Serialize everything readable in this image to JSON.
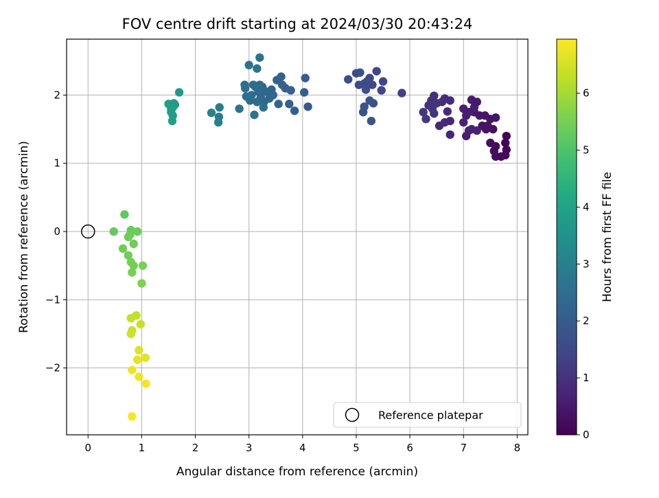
{
  "chart_data": {
    "type": "scatter",
    "title": "FOV centre drift starting at 2024/03/30 20:43:24",
    "xlabel": "Angular distance from reference (arcmin)",
    "ylabel": "Rotation from reference (arcmin)",
    "xlim": [
      -0.4,
      8.2
    ],
    "ylim": [
      -2.98,
      2.82
    ],
    "x_ticks": [
      0,
      1,
      2,
      3,
      4,
      5,
      6,
      7,
      8
    ],
    "y_ticks": [
      -2,
      -1,
      0,
      1,
      2
    ],
    "grid": true,
    "colormap": "viridis",
    "colorbar": {
      "label": "Hours from first FF file",
      "range": [
        0,
        6.95
      ],
      "ticks": [
        0,
        1,
        2,
        3,
        4,
        5,
        6
      ]
    },
    "legend": {
      "placement": "lower-right",
      "entries": [
        {
          "label": "Reference platepar",
          "marker": "open-circle"
        }
      ]
    },
    "reference_point": {
      "x": 0,
      "y": 0
    },
    "series": [
      {
        "marker": "filled-circle",
        "points": [
          {
            "x": 7.8,
            "y": 1.4,
            "t": 0.05
          },
          {
            "x": 7.78,
            "y": 1.3,
            "t": 0.08
          },
          {
            "x": 7.8,
            "y": 1.2,
            "t": 0.1
          },
          {
            "x": 7.78,
            "y": 1.12,
            "t": 0.12
          },
          {
            "x": 7.7,
            "y": 1.1,
            "t": 0.15
          },
          {
            "x": 7.6,
            "y": 1.1,
            "t": 0.18
          },
          {
            "x": 7.57,
            "y": 1.18,
            "t": 0.2
          },
          {
            "x": 7.6,
            "y": 1.25,
            "t": 0.22
          },
          {
            "x": 7.5,
            "y": 1.3,
            "t": 0.25
          },
          {
            "x": 7.55,
            "y": 1.5,
            "t": 0.27
          },
          {
            "x": 7.42,
            "y": 1.5,
            "t": 0.3
          },
          {
            "x": 7.35,
            "y": 1.55,
            "t": 0.33
          },
          {
            "x": 7.45,
            "y": 1.55,
            "t": 0.35
          },
          {
            "x": 7.5,
            "y": 1.65,
            "t": 0.37
          },
          {
            "x": 7.6,
            "y": 1.67,
            "t": 0.4
          },
          {
            "x": 7.4,
            "y": 1.7,
            "t": 0.42
          },
          {
            "x": 7.3,
            "y": 1.7,
            "t": 0.44
          },
          {
            "x": 7.2,
            "y": 1.75,
            "t": 0.46
          },
          {
            "x": 7.25,
            "y": 1.9,
            "t": 0.48
          },
          {
            "x": 7.15,
            "y": 1.93,
            "t": 0.5
          },
          {
            "x": 7.2,
            "y": 1.82,
            "t": 0.52
          },
          {
            "x": 7.1,
            "y": 1.75,
            "t": 0.54
          },
          {
            "x": 7.05,
            "y": 1.7,
            "t": 0.56
          },
          {
            "x": 7.0,
            "y": 1.8,
            "t": 0.58
          },
          {
            "x": 7.15,
            "y": 1.5,
            "t": 0.6
          },
          {
            "x": 7.05,
            "y": 1.4,
            "t": 0.62
          },
          {
            "x": 7.0,
            "y": 1.6,
            "t": 0.64
          },
          {
            "x": 7.1,
            "y": 1.48,
            "t": 0.66
          },
          {
            "x": 7.25,
            "y": 1.48,
            "t": 0.68
          },
          {
            "x": 6.75,
            "y": 1.42,
            "t": 0.72
          },
          {
            "x": 6.75,
            "y": 1.62,
            "t": 0.75
          },
          {
            "x": 6.65,
            "y": 1.6,
            "t": 0.78
          },
          {
            "x": 6.55,
            "y": 1.55,
            "t": 0.8
          },
          {
            "x": 6.7,
            "y": 1.76,
            "t": 0.82
          },
          {
            "x": 6.65,
            "y": 1.95,
            "t": 0.85
          },
          {
            "x": 6.75,
            "y": 1.92,
            "t": 0.88
          },
          {
            "x": 6.6,
            "y": 1.9,
            "t": 0.9
          },
          {
            "x": 6.45,
            "y": 1.99,
            "t": 0.93
          },
          {
            "x": 6.4,
            "y": 1.92,
            "t": 0.95
          },
          {
            "x": 6.35,
            "y": 1.85,
            "t": 0.97
          },
          {
            "x": 6.5,
            "y": 1.88,
            "t": 1.0
          },
          {
            "x": 6.42,
            "y": 1.8,
            "t": 1.02
          },
          {
            "x": 6.45,
            "y": 1.73,
            "t": 1.05
          },
          {
            "x": 6.25,
            "y": 1.75,
            "t": 1.08
          },
          {
            "x": 6.3,
            "y": 1.65,
            "t": 1.1
          },
          {
            "x": 5.85,
            "y": 2.03,
            "t": 1.3
          },
          {
            "x": 5.5,
            "y": 2.2,
            "t": 1.4
          },
          {
            "x": 5.47,
            "y": 2.07,
            "t": 1.45
          },
          {
            "x": 5.38,
            "y": 2.35,
            "t": 1.48
          },
          {
            "x": 5.3,
            "y": 2.15,
            "t": 1.5
          },
          {
            "x": 5.25,
            "y": 2.25,
            "t": 1.52
          },
          {
            "x": 5.2,
            "y": 2.2,
            "t": 1.55
          },
          {
            "x": 5.15,
            "y": 2.17,
            "t": 1.58
          },
          {
            "x": 5.05,
            "y": 2.15,
            "t": 1.6
          },
          {
            "x": 5.0,
            "y": 2.32,
            "t": 1.62
          },
          {
            "x": 5.07,
            "y": 2.33,
            "t": 1.65
          },
          {
            "x": 5.18,
            "y": 2.08,
            "t": 1.68
          },
          {
            "x": 4.85,
            "y": 2.23,
            "t": 1.7
          },
          {
            "x": 5.32,
            "y": 1.88,
            "t": 1.72
          },
          {
            "x": 5.25,
            "y": 1.92,
            "t": 1.75
          },
          {
            "x": 5.15,
            "y": 1.83,
            "t": 1.78
          },
          {
            "x": 5.13,
            "y": 1.75,
            "t": 1.8
          },
          {
            "x": 5.28,
            "y": 1.62,
            "t": 1.82
          },
          {
            "x": 4.1,
            "y": 1.83,
            "t": 2.0
          },
          {
            "x": 4.05,
            "y": 2.25,
            "t": 2.03
          },
          {
            "x": 4.03,
            "y": 2.04,
            "t": 2.06
          },
          {
            "x": 3.85,
            "y": 1.77,
            "t": 2.08
          },
          {
            "x": 3.75,
            "y": 1.87,
            "t": 2.1
          },
          {
            "x": 3.78,
            "y": 2.07,
            "t": 2.12
          },
          {
            "x": 3.68,
            "y": 2.1,
            "t": 2.14
          },
          {
            "x": 3.62,
            "y": 2.15,
            "t": 2.16
          },
          {
            "x": 3.6,
            "y": 2.27,
            "t": 2.18
          },
          {
            "x": 3.52,
            "y": 2.22,
            "t": 2.2
          },
          {
            "x": 3.55,
            "y": 1.87,
            "t": 2.22
          },
          {
            "x": 3.45,
            "y": 2.0,
            "t": 2.24
          },
          {
            "x": 3.42,
            "y": 2.08,
            "t": 2.26
          },
          {
            "x": 3.38,
            "y": 1.95,
            "t": 2.28
          },
          {
            "x": 3.32,
            "y": 2.05,
            "t": 2.3
          },
          {
            "x": 3.28,
            "y": 1.9,
            "t": 2.32
          },
          {
            "x": 3.25,
            "y": 2.12,
            "t": 2.34
          },
          {
            "x": 3.22,
            "y": 1.97,
            "t": 2.36
          },
          {
            "x": 3.2,
            "y": 2.15,
            "t": 2.38
          },
          {
            "x": 3.18,
            "y": 2.05,
            "t": 2.4
          },
          {
            "x": 3.15,
            "y": 1.9,
            "t": 2.42
          },
          {
            "x": 3.12,
            "y": 2.12,
            "t": 2.44
          },
          {
            "x": 3.08,
            "y": 2.15,
            "t": 2.46
          },
          {
            "x": 3.05,
            "y": 2.0,
            "t": 2.48
          },
          {
            "x": 3.02,
            "y": 1.92,
            "t": 2.5
          },
          {
            "x": 2.95,
            "y": 1.98,
            "t": 2.52
          },
          {
            "x": 2.92,
            "y": 2.15,
            "t": 2.54
          },
          {
            "x": 2.93,
            "y": 2.1,
            "t": 2.56
          },
          {
            "x": 3.27,
            "y": 1.82,
            "t": 2.58
          },
          {
            "x": 3.1,
            "y": 1.71,
            "t": 2.6
          },
          {
            "x": 2.82,
            "y": 1.8,
            "t": 2.62
          },
          {
            "x": 3.0,
            "y": 2.44,
            "t": 2.64
          },
          {
            "x": 3.15,
            "y": 2.39,
            "t": 2.66
          },
          {
            "x": 3.2,
            "y": 2.55,
            "t": 2.68
          },
          {
            "x": 2.45,
            "y": 1.82,
            "t": 2.9
          },
          {
            "x": 2.44,
            "y": 1.68,
            "t": 2.95
          },
          {
            "x": 2.43,
            "y": 1.6,
            "t": 3.0
          },
          {
            "x": 2.3,
            "y": 1.74,
            "t": 3.05
          },
          {
            "x": 1.7,
            "y": 2.04,
            "t": 3.7
          },
          {
            "x": 1.62,
            "y": 1.86,
            "t": 3.75
          },
          {
            "x": 1.6,
            "y": 1.88,
            "t": 3.78
          },
          {
            "x": 1.58,
            "y": 1.82,
            "t": 3.8
          },
          {
            "x": 1.55,
            "y": 1.75,
            "t": 3.82
          },
          {
            "x": 1.58,
            "y": 1.7,
            "t": 3.85
          },
          {
            "x": 1.5,
            "y": 1.87,
            "t": 3.88
          },
          {
            "x": 1.55,
            "y": 1.79,
            "t": 3.9
          },
          {
            "x": 1.57,
            "y": 1.62,
            "t": 3.92
          },
          {
            "x": 0.68,
            "y": 0.25,
            "t": 5.2
          },
          {
            "x": 0.48,
            "y": 0.0,
            "t": 5.25
          },
          {
            "x": 0.78,
            "y": -0.05,
            "t": 5.3
          },
          {
            "x": 0.8,
            "y": 0.02,
            "t": 5.32
          },
          {
            "x": 0.92,
            "y": 0.0,
            "t": 5.35
          },
          {
            "x": 0.85,
            "y": -0.18,
            "t": 5.38
          },
          {
            "x": 0.75,
            "y": -0.08,
            "t": 5.4
          },
          {
            "x": 0.65,
            "y": -0.25,
            "t": 5.42
          },
          {
            "x": 0.75,
            "y": -0.35,
            "t": 5.45
          },
          {
            "x": 0.8,
            "y": -0.45,
            "t": 5.48
          },
          {
            "x": 0.85,
            "y": -0.5,
            "t": 5.5
          },
          {
            "x": 0.82,
            "y": -0.6,
            "t": 5.52
          },
          {
            "x": 1.02,
            "y": -0.5,
            "t": 5.55
          },
          {
            "x": 1.0,
            "y": -0.76,
            "t": 5.58
          },
          {
            "x": 0.9,
            "y": -1.23,
            "t": 6.3
          },
          {
            "x": 0.8,
            "y": -1.27,
            "t": 6.32
          },
          {
            "x": 0.98,
            "y": -1.36,
            "t": 6.35
          },
          {
            "x": 0.82,
            "y": -1.45,
            "t": 6.38
          },
          {
            "x": 0.8,
            "y": -1.5,
            "t": 6.4
          },
          {
            "x": 0.95,
            "y": -1.74,
            "t": 6.6
          },
          {
            "x": 1.07,
            "y": -1.85,
            "t": 6.65
          },
          {
            "x": 0.92,
            "y": -1.88,
            "t": 6.7
          },
          {
            "x": 0.82,
            "y": -2.03,
            "t": 6.75
          },
          {
            "x": 0.95,
            "y": -2.13,
            "t": 6.8
          },
          {
            "x": 1.08,
            "y": -2.23,
            "t": 6.85
          },
          {
            "x": 0.82,
            "y": -2.71,
            "t": 6.9
          }
        ]
      }
    ]
  }
}
